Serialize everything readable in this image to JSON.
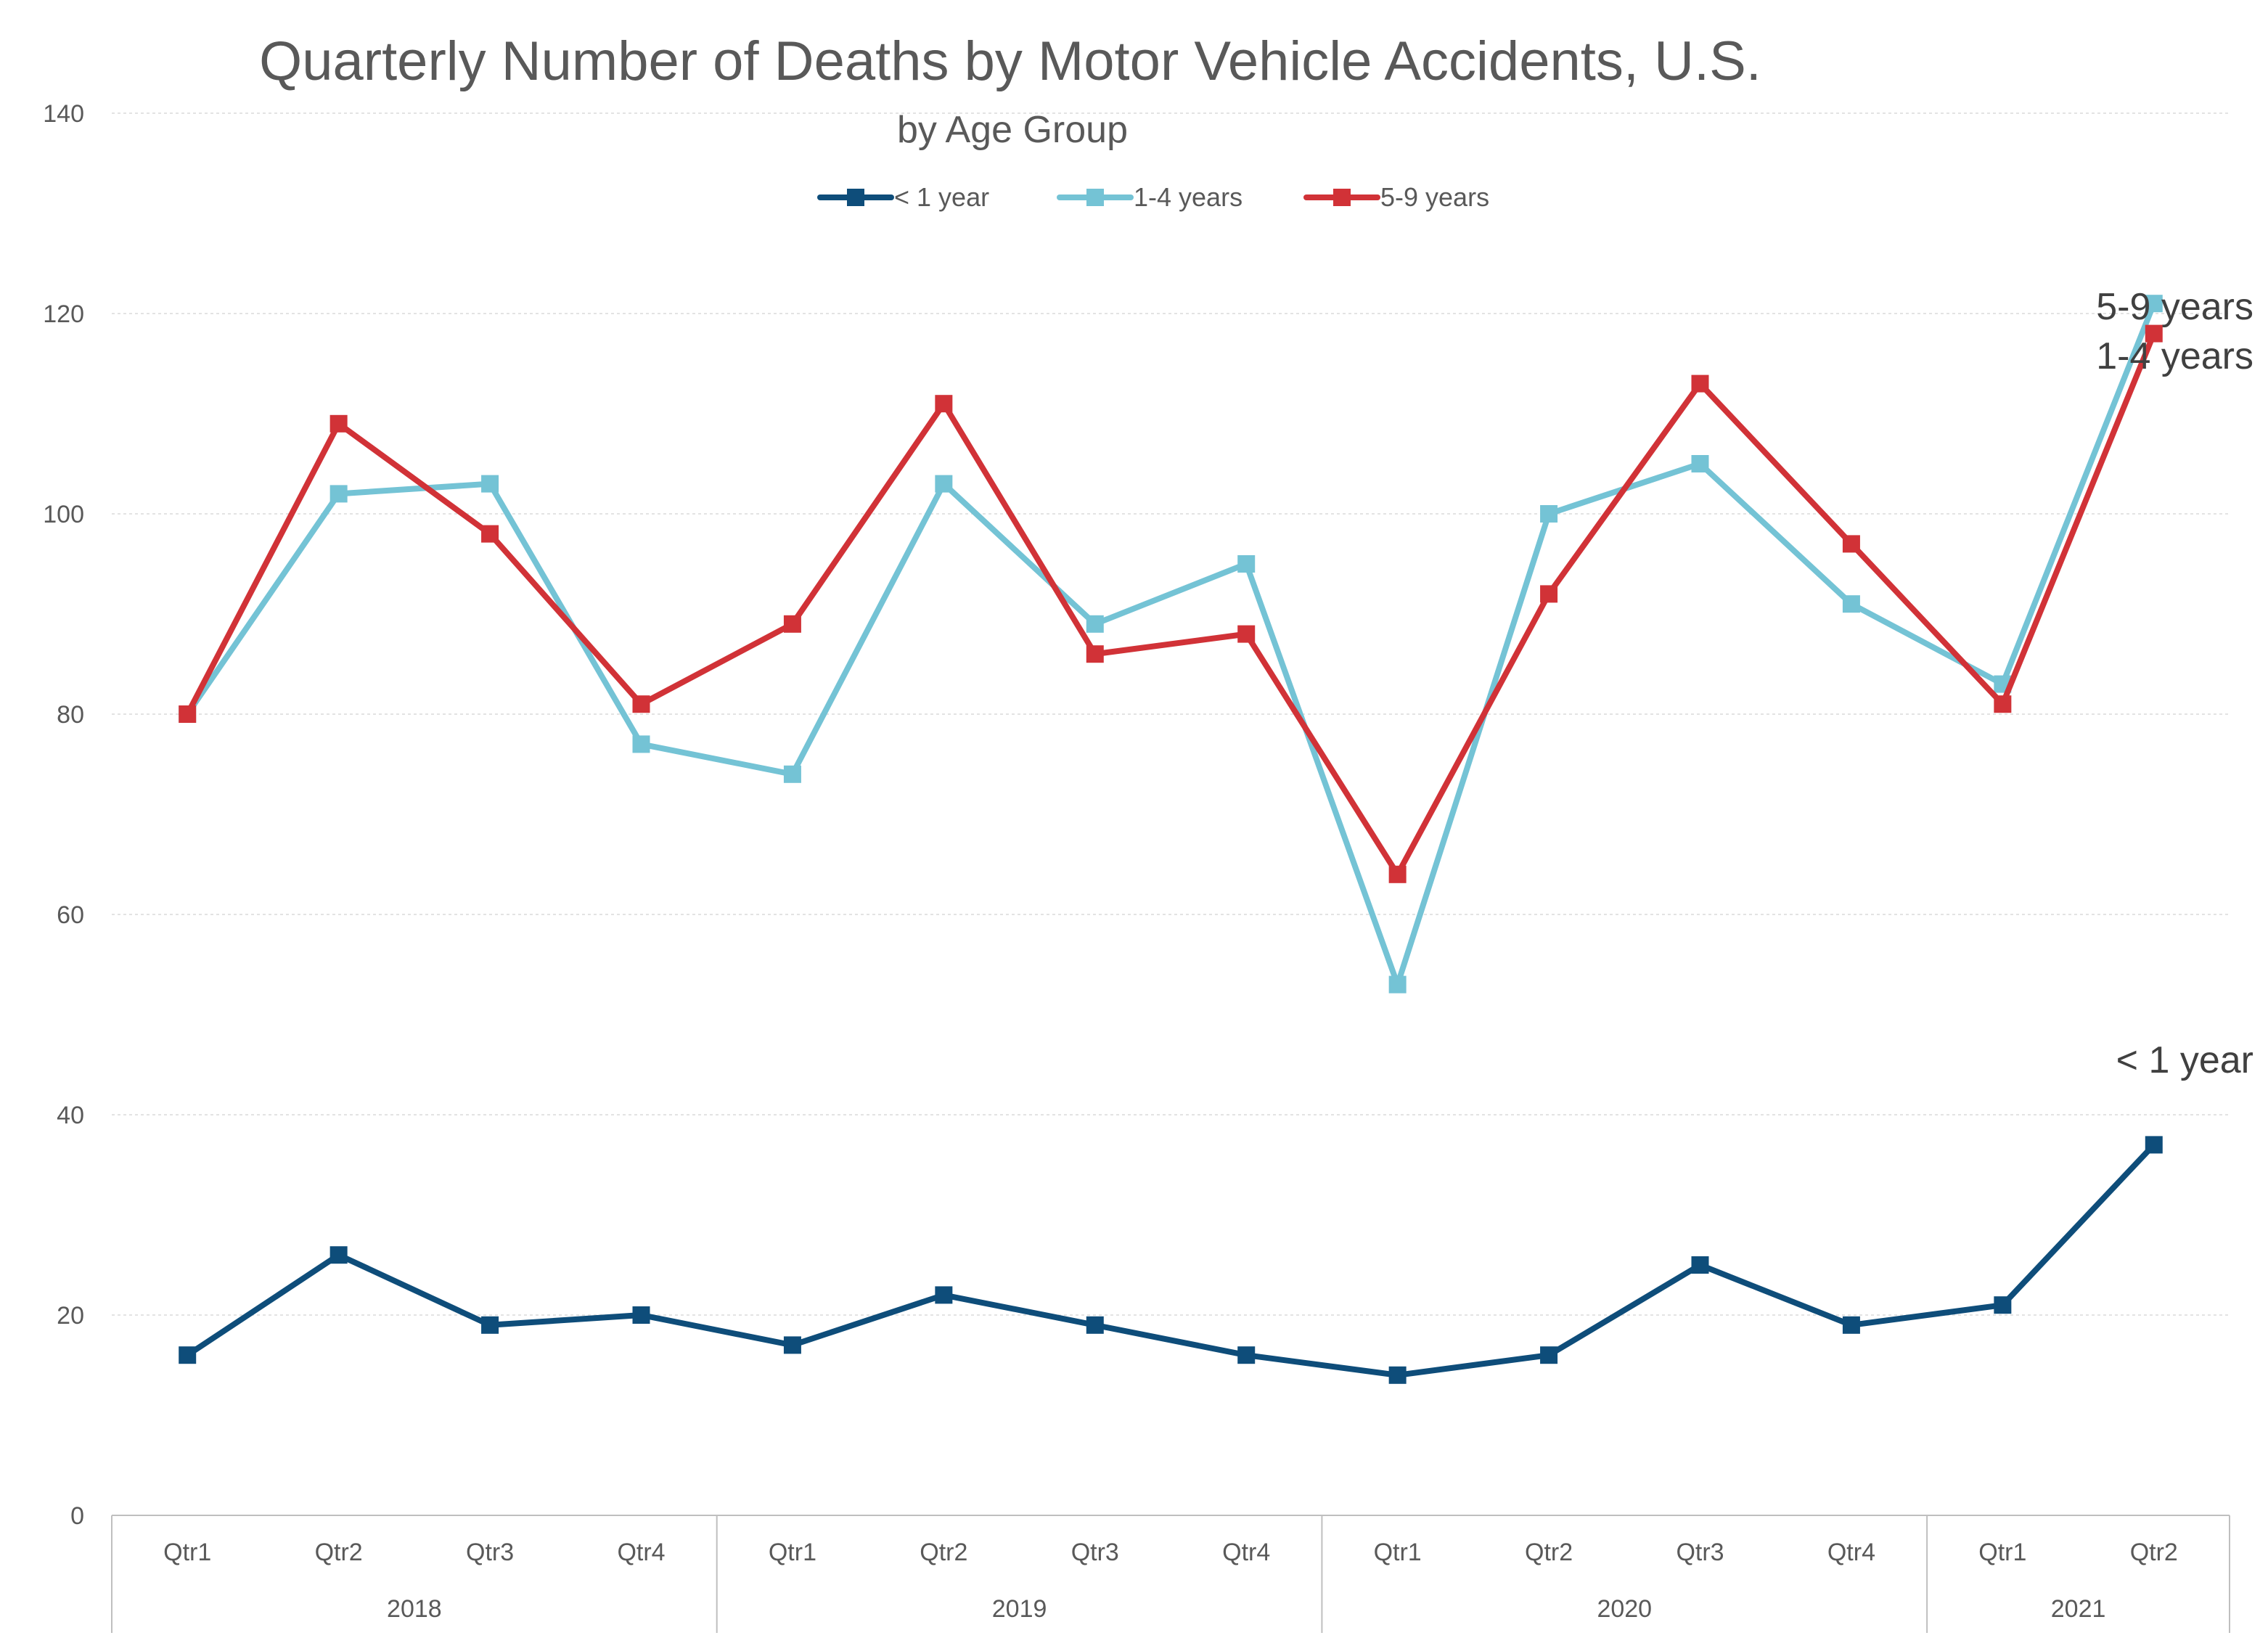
{
  "chart_data": {
    "type": "line",
    "title": "Quarterly Number of Deaths by Motor Vehicle Accidents, U.S.",
    "subtitle": "by Age Group",
    "xlabel": "",
    "ylabel": "",
    "ylim": [
      0,
      140
    ],
    "yticks": [
      0,
      20,
      40,
      60,
      80,
      100,
      120,
      140
    ],
    "grid": true,
    "legend_position": "top",
    "categories": [
      "Qtr1",
      "Qtr2",
      "Qtr3",
      "Qtr4",
      "Qtr1",
      "Qtr2",
      "Qtr3",
      "Qtr4",
      "Qtr1",
      "Qtr2",
      "Qtr3",
      "Qtr4",
      "Qtr1",
      "Qtr2"
    ],
    "year_groups": [
      {
        "label": "2018",
        "count": 4
      },
      {
        "label": "2019",
        "count": 4
      },
      {
        "label": "2020",
        "count": 4
      },
      {
        "label": "2021",
        "count": 2
      }
    ],
    "series": [
      {
        "name": "< 1 year",
        "color": "#0e4d7a",
        "values": [
          16,
          26,
          19,
          20,
          17,
          22,
          19,
          16,
          14,
          16,
          25,
          19,
          21,
          37
        ]
      },
      {
        "name": "1-4 years",
        "color": "#74c3d5",
        "values": [
          80,
          102,
          103,
          77,
          74,
          103,
          89,
          95,
          53,
          100,
          105,
          91,
          83,
          121
        ]
      },
      {
        "name": "5-9 years",
        "color": "#d13237",
        "values": [
          80,
          109,
          98,
          81,
          89,
          111,
          86,
          88,
          64,
          92,
          113,
          97,
          81,
          118
        ]
      }
    ],
    "end_labels": [
      "5-9 years",
      "1-4 years",
      "< 1 year"
    ]
  }
}
